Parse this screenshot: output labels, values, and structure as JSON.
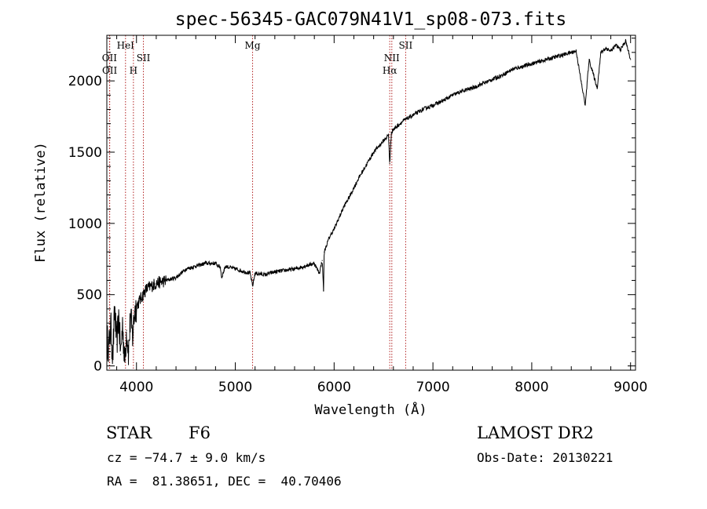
{
  "chart_data": {
    "type": "line",
    "title": "spec-56345-GAC079N41V1_sp08-073.fits",
    "xlabel": "Wavelength (Å)",
    "ylabel": "Flux (relative)",
    "xlim": [
      3700,
      9050
    ],
    "ylim": [
      -30,
      2320
    ],
    "xticks": [
      4000,
      5000,
      6000,
      7000,
      8000,
      9000
    ],
    "yticks": [
      0,
      500,
      1000,
      1500,
      2000
    ],
    "grid": false,
    "series": [
      {
        "x": [
          3700,
          3720,
          3740,
          3760,
          3780,
          3800,
          3820,
          3840,
          3860,
          3880,
          3900,
          3920,
          3940,
          3960,
          3980,
          4000,
          4050,
          4100,
          4150,
          4200,
          4300,
          4400,
          4500,
          4600,
          4700,
          4800,
          4850,
          4861,
          4900,
          5000,
          5100,
          5150,
          5175,
          5200,
          5300,
          5400,
          5500,
          5600,
          5700,
          5800,
          5850,
          5880,
          5893,
          5900,
          5950,
          6000,
          6050,
          6100,
          6150,
          6200,
          6250,
          6300,
          6350,
          6400,
          6450,
          6500,
          6550,
          6563,
          6580,
          6600,
          6650,
          6700,
          6800,
          6900,
          7000,
          7100,
          7200,
          7300,
          7400,
          7500,
          7600,
          7700,
          7800,
          7900,
          8000,
          8100,
          8200,
          8300,
          8400,
          8450,
          8498,
          8542,
          8580,
          8662,
          8700,
          8750,
          8800,
          8850,
          8900,
          8950,
          9000
        ],
        "y": [
          200,
          120,
          280,
          60,
          400,
          150,
          350,
          80,
          300,
          30,
          250,
          100,
          350,
          200,
          380,
          420,
          480,
          540,
          560,
          580,
          600,
          620,
          680,
          700,
          720,
          720,
          690,
          620,
          700,
          680,
          660,
          650,
          560,
          650,
          640,
          660,
          670,
          680,
          700,
          720,
          650,
          740,
          530,
          800,
          900,
          960,
          1040,
          1120,
          1180,
          1250,
          1320,
          1380,
          1440,
          1500,
          1540,
          1580,
          1620,
          1420,
          1640,
          1660,
          1690,
          1720,
          1760,
          1800,
          1830,
          1860,
          1900,
          1930,
          1950,
          1980,
          2010,
          2040,
          2080,
          2100,
          2120,
          2140,
          2160,
          2180,
          2200,
          2210,
          2000,
          1830,
          2150,
          1950,
          2200,
          2230,
          2210,
          2250,
          2220,
          2280,
          2150
        ]
      }
    ],
    "spectral_lines": [
      {
        "label": "OII",
        "x": 3727,
        "row": 2
      },
      {
        "label": "OII",
        "x": 3729,
        "row": 3
      },
      {
        "label": "HeI",
        "x": 3889,
        "row": 1
      },
      {
        "label": "H",
        "x": 3969,
        "row": 3
      },
      {
        "label": "SII",
        "x": 4070,
        "row": 2
      },
      {
        "label": "Mg",
        "x": 5175,
        "row": 1
      },
      {
        "label": "NII",
        "x": 6584,
        "row": 2
      },
      {
        "label": "Hα",
        "x": 6563,
        "row": 3
      },
      {
        "label": "SII",
        "x": 6724,
        "row": 1
      }
    ],
    "line_color": "#b22222"
  },
  "info": {
    "object_class": "STAR",
    "subclass": "F6",
    "cz": "cz = −74.7 ± 9.0 km/s",
    "coords": "RA =  81.38651, DEC =  40.70406",
    "survey": "LAMOST DR2",
    "obs_date": "Obs-Date: 20130221"
  }
}
